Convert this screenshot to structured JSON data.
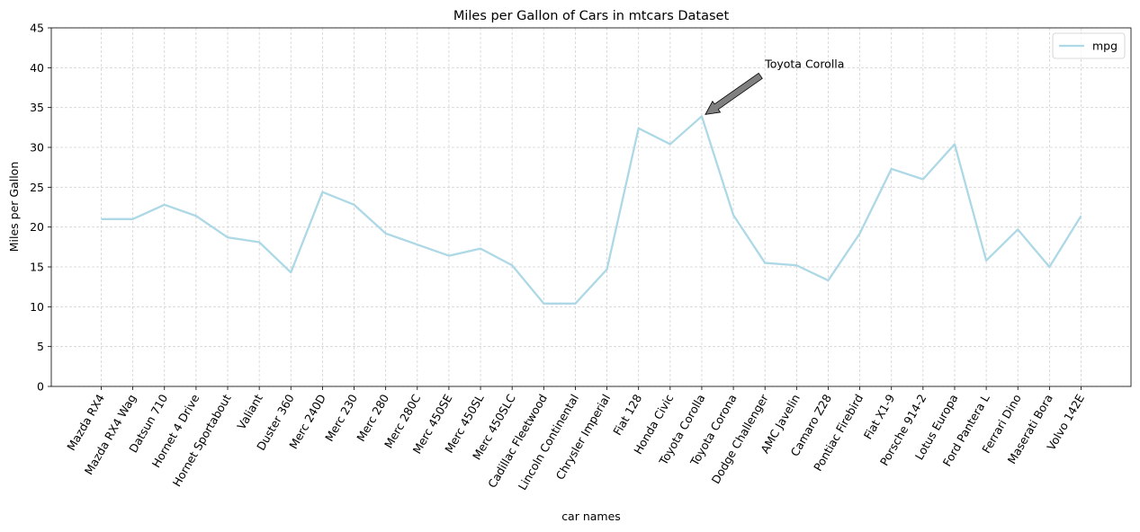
{
  "chart_data": {
    "type": "line",
    "title": "Miles per Gallon of Cars in mtcars Dataset",
    "xlabel": "car names",
    "ylabel": "Miles per Gallon",
    "ylim": [
      0,
      45
    ],
    "yticks": [
      0,
      5,
      10,
      15,
      20,
      25,
      30,
      35,
      40,
      45
    ],
    "grid": true,
    "legend_position": "top-right",
    "categories": [
      "Mazda RX4",
      "Mazda RX4 Wag",
      "Datsun 710",
      "Hornet 4 Drive",
      "Hornet Sportabout",
      "Valiant",
      "Duster 360",
      "Merc 240D",
      "Merc 230",
      "Merc 280",
      "Merc 280C",
      "Merc 450SE",
      "Merc 450SL",
      "Merc 450SLC",
      "Cadillac Fleetwood",
      "Lincoln Continental",
      "Chrysler Imperial",
      "Fiat 128",
      "Honda Civic",
      "Toyota Corolla",
      "Toyota Corona",
      "Dodge Challenger",
      "AMC Javelin",
      "Camaro Z28",
      "Pontiac Firebird",
      "Fiat X1-9",
      "Porsche 914-2",
      "Lotus Europa",
      "Ford Pantera L",
      "Ferrari Dino",
      "Maserati Bora",
      "Volvo 142E"
    ],
    "series": [
      {
        "name": "mpg",
        "color": "#add8e6",
        "values": [
          21.0,
          21.0,
          22.8,
          21.4,
          18.7,
          18.1,
          14.3,
          24.4,
          22.8,
          19.2,
          17.8,
          16.4,
          17.3,
          15.2,
          10.4,
          10.4,
          14.7,
          32.4,
          30.4,
          33.9,
          21.5,
          15.5,
          15.2,
          13.3,
          19.2,
          27.3,
          26.0,
          30.4,
          15.8,
          19.7,
          15.0,
          21.4
        ]
      }
    ],
    "annotation": {
      "text": "Toyota Corolla",
      "target_category": "Toyota Corolla",
      "target_value": 33.9,
      "text_x_category": "Dodge Challenger",
      "text_y_value": 40,
      "arrow_color": "#808080"
    }
  }
}
